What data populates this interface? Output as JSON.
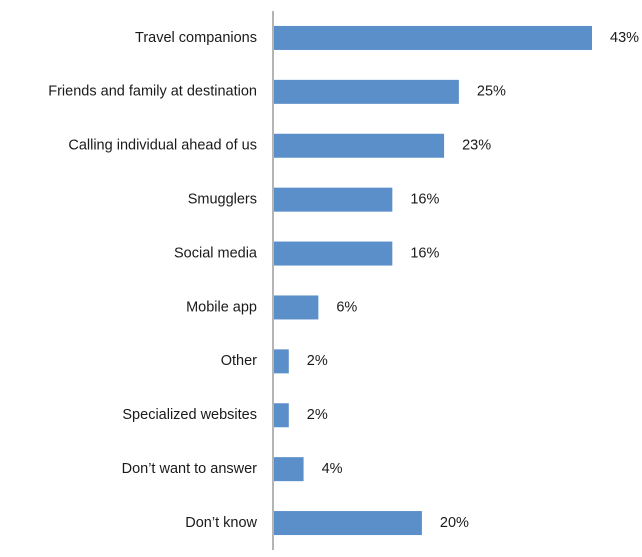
{
  "chart_data": {
    "type": "bar",
    "orientation": "horizontal",
    "categories": [
      "Travel companions",
      "Friends and family at destination",
      "Calling individual ahead of us",
      "Smugglers",
      "Social media",
      "Mobile app",
      "Other",
      "Specialized websites",
      "Don’t want to answer",
      "Don’t know"
    ],
    "values": [
      43,
      25,
      23,
      16,
      16,
      6,
      2,
      2,
      4,
      20
    ],
    "value_labels": [
      "43%",
      "25%",
      "23%",
      "16%",
      "16%",
      "6%",
      "2%",
      "2%",
      "4%",
      "20%"
    ],
    "unit": "%",
    "title": "",
    "xlabel": "",
    "ylabel": "",
    "xlim": [
      0,
      43
    ],
    "grid": false,
    "legend": "none",
    "colors": {
      "bar": "#5b8fc9",
      "axis": "#8c8c8c",
      "text": "#1a1a1a"
    }
  }
}
